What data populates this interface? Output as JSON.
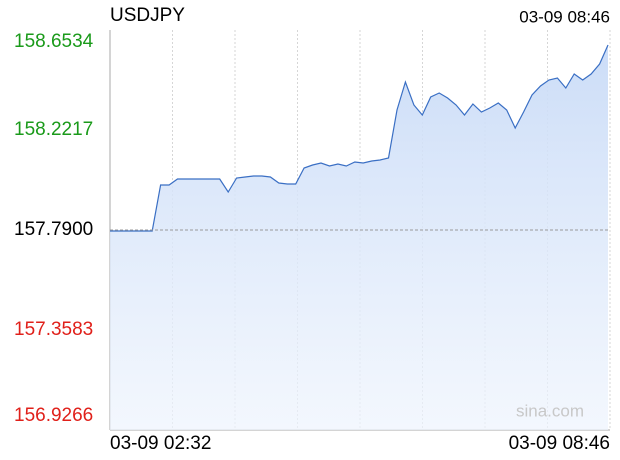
{
  "chart_data": {
    "type": "line",
    "title": "USDJPY",
    "time": "03-09 08:46",
    "watermark": "sina.com",
    "categories": [
      "03-09 02:32",
      null,
      null,
      null,
      null,
      null,
      null,
      null,
      null,
      null,
      null,
      null,
      null,
      null,
      null,
      null,
      null,
      null,
      null,
      null,
      null,
      null,
      null,
      null,
      null,
      null,
      null,
      null,
      null,
      null,
      null,
      null,
      null,
      null,
      null,
      null,
      null,
      null,
      null,
      null,
      null,
      null,
      null,
      null,
      null,
      null,
      null,
      null,
      null,
      null,
      null,
      null,
      null,
      null,
      null,
      null,
      null,
      null,
      null,
      "03-09 08:46"
    ],
    "values": [
      157.7857,
      157.7857,
      157.7857,
      157.7857,
      157.7857,
      157.7857,
      157.9843,
      157.9843,
      158.0102,
      158.0102,
      158.0102,
      158.0102,
      158.0102,
      158.0102,
      157.954,
      158.0145,
      158.0188,
      158.0231,
      158.0231,
      158.0188,
      157.9929,
      157.9886,
      157.9886,
      158.0577,
      158.0706,
      158.0792,
      158.0663,
      158.0749,
      158.0663,
      158.0836,
      158.0792,
      158.0879,
      158.0922,
      158.1008,
      158.308,
      158.4289,
      158.3296,
      158.2865,
      158.3642,
      158.3814,
      158.3598,
      158.3296,
      158.2865,
      158.3339,
      158.2994,
      158.3167,
      158.3383,
      158.308,
      158.2303,
      158.2994,
      158.3728,
      158.4117,
      158.4376,
      158.4462,
      158.403,
      158.4635,
      158.4376,
      158.4635,
      158.5066,
      158.5887
    ],
    "color": "#3a6fc4",
    "reference": 157.79,
    "up_color": "#1a9a1a",
    "down_color": "#e0201a",
    "ylim": [
      156.9266,
      158.6534
    ],
    "yticks": [
      156.9266,
      157.3583,
      {
        "value": 157.79,
        "label": "157.7900"
      },
      158.2217,
      158.6534
    ]
  }
}
